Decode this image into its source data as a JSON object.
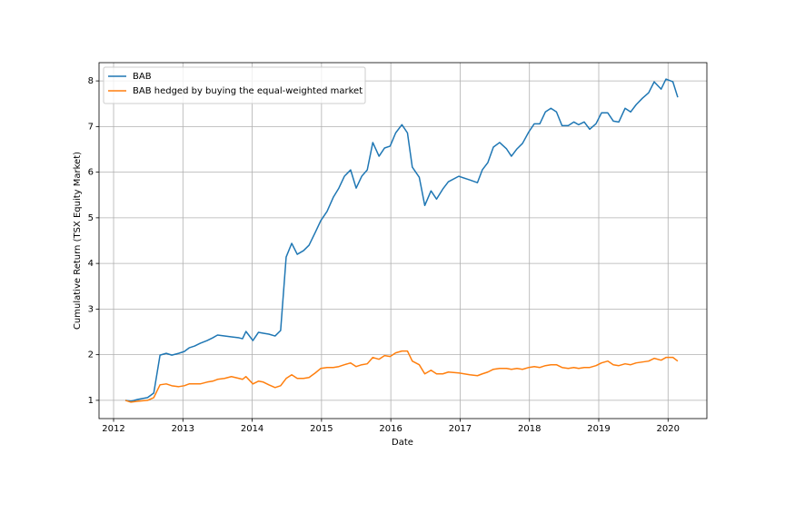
{
  "chart_data": {
    "type": "line",
    "x_label": "Date",
    "y_label": "Cumulative Return (TSX Equity Market)",
    "x": [
      2012.17,
      2012.25,
      2012.35,
      2012.49,
      2012.58,
      2012.67,
      2012.76,
      2012.84,
      2012.94,
      2013.02,
      2013.09,
      2013.17,
      2013.25,
      2013.35,
      2013.43,
      2013.5,
      2013.6,
      2013.7,
      2013.81,
      2013.86,
      2013.91,
      2014.01,
      2014.09,
      2014.16,
      2014.24,
      2014.33,
      2014.41,
      2014.49,
      2014.57,
      2014.65,
      2014.74,
      2014.82,
      2014.91,
      2014.99,
      2015.08,
      2015.17,
      2015.25,
      2015.33,
      2015.42,
      2015.5,
      2015.58,
      2015.66,
      2015.74,
      2015.83,
      2015.91,
      2015.99,
      2016.07,
      2016.16,
      2016.24,
      2016.31,
      2016.41,
      2016.49,
      2016.58,
      2016.66,
      2016.75,
      2016.83,
      2016.98,
      2017.14,
      2017.25,
      2017.32,
      2017.4,
      2017.48,
      2017.57,
      2017.67,
      2017.74,
      2017.82,
      2017.9,
      2017.99,
      2018.07,
      2018.15,
      2018.23,
      2018.31,
      2018.39,
      2018.47,
      2018.56,
      2018.64,
      2018.71,
      2018.79,
      2018.87,
      2018.96,
      2019.04,
      2019.13,
      2019.21,
      2019.29,
      2019.38,
      2019.46,
      2019.54,
      2019.63,
      2019.72,
      2019.8,
      2019.9,
      2019.97,
      2020.07,
      2020.14
    ],
    "series": [
      {
        "name": "BAB",
        "color": "#1f77b4",
        "values": [
          1.0,
          0.98,
          1.02,
          1.06,
          1.16,
          1.99,
          2.03,
          1.99,
          2.03,
          2.07,
          2.15,
          2.19,
          2.25,
          2.31,
          2.37,
          2.43,
          2.41,
          2.39,
          2.37,
          2.35,
          2.51,
          2.31,
          2.49,
          2.47,
          2.45,
          2.41,
          2.53,
          4.14,
          4.44,
          4.2,
          4.28,
          4.4,
          4.68,
          4.94,
          5.14,
          5.45,
          5.65,
          5.91,
          6.05,
          5.65,
          5.91,
          6.05,
          6.65,
          6.35,
          6.53,
          6.57,
          6.86,
          7.04,
          6.86,
          6.11,
          5.89,
          5.27,
          5.59,
          5.41,
          5.63,
          5.79,
          5.91,
          5.83,
          5.77,
          6.05,
          6.21,
          6.55,
          6.65,
          6.51,
          6.35,
          6.51,
          6.63,
          6.88,
          7.06,
          7.06,
          7.32,
          7.4,
          7.32,
          7.02,
          7.02,
          7.1,
          7.04,
          7.1,
          6.94,
          7.06,
          7.3,
          7.3,
          7.12,
          7.1,
          7.4,
          7.32,
          7.48,
          7.62,
          7.74,
          7.98,
          7.82,
          8.04,
          7.98,
          7.64
        ]
      },
      {
        "name": "BAB hedged by buying the equal-weighted market",
        "color": "#ff7f0e",
        "values": [
          1.0,
          0.96,
          0.98,
          1.0,
          1.06,
          1.34,
          1.36,
          1.32,
          1.3,
          1.32,
          1.36,
          1.36,
          1.36,
          1.4,
          1.42,
          1.46,
          1.48,
          1.52,
          1.48,
          1.46,
          1.52,
          1.36,
          1.42,
          1.4,
          1.34,
          1.28,
          1.32,
          1.48,
          1.56,
          1.48,
          1.48,
          1.5,
          1.6,
          1.7,
          1.72,
          1.72,
          1.74,
          1.78,
          1.82,
          1.74,
          1.78,
          1.8,
          1.94,
          1.9,
          1.98,
          1.96,
          2.04,
          2.08,
          2.08,
          1.86,
          1.78,
          1.58,
          1.66,
          1.58,
          1.58,
          1.62,
          1.6,
          1.56,
          1.54,
          1.58,
          1.62,
          1.68,
          1.7,
          1.7,
          1.68,
          1.7,
          1.68,
          1.72,
          1.74,
          1.72,
          1.76,
          1.78,
          1.78,
          1.72,
          1.7,
          1.72,
          1.7,
          1.72,
          1.72,
          1.76,
          1.82,
          1.86,
          1.78,
          1.76,
          1.8,
          1.78,
          1.82,
          1.84,
          1.86,
          1.92,
          1.88,
          1.94,
          1.94,
          1.86
        ]
      }
    ],
    "xlim": [
      2011.79,
      2020.56
    ],
    "xticks": [
      2012,
      2013,
      2014,
      2015,
      2016,
      2017,
      2018,
      2019,
      2020
    ],
    "ylim": [
      0.6,
      8.4
    ],
    "yticks": [
      1,
      2,
      3,
      4,
      5,
      6,
      7,
      8
    ],
    "grid": true,
    "legend": "upper left"
  }
}
